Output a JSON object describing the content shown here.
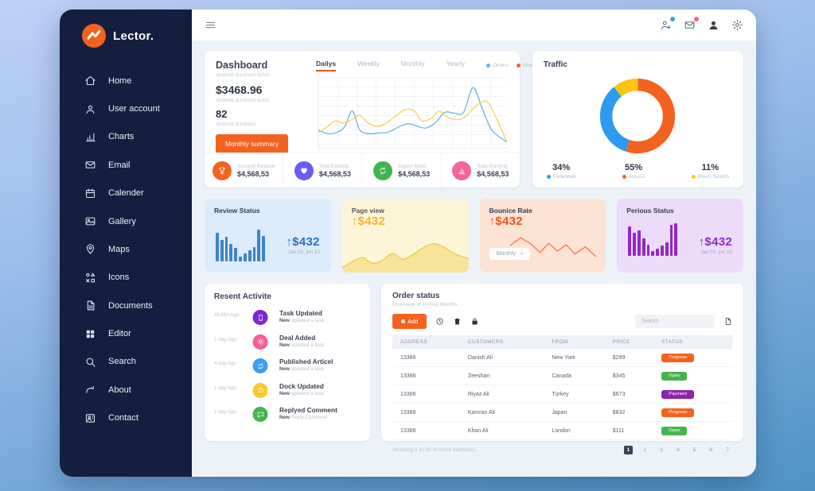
{
  "app": {
    "logo_text": "Lector.",
    "accent": "#f4621f",
    "sidebar_bg": "#141e3e"
  },
  "sidebar": {
    "items": [
      {
        "label": "Home",
        "icon": "home"
      },
      {
        "label": "User account",
        "icon": "user"
      },
      {
        "label": "Charts",
        "icon": "charts"
      },
      {
        "label": "Email",
        "icon": "email"
      },
      {
        "label": "Calender",
        "icon": "calendar"
      },
      {
        "label": "Gallery",
        "icon": "gallery"
      },
      {
        "label": "Maps",
        "icon": "maps"
      },
      {
        "label": "Icons",
        "icon": "icons"
      },
      {
        "label": "Documents",
        "icon": "documents"
      },
      {
        "label": "Editor",
        "icon": "editor"
      },
      {
        "label": "Search",
        "icon": "search"
      },
      {
        "label": "About",
        "icon": "about"
      },
      {
        "label": "Contact",
        "icon": "contact"
      }
    ]
  },
  "header": {
    "actions": [
      {
        "icon": "useradd",
        "badge": "#3d9df3",
        "color": "#5f6b7d"
      },
      {
        "icon": "email",
        "badge": "#f55f8f",
        "color": "#5f6b7d"
      },
      {
        "icon": "avatar",
        "color": "#3a3f45"
      },
      {
        "icon": "gear",
        "color": "#5f6b7d"
      }
    ]
  },
  "dashboard": {
    "title": "Dashboard",
    "subtitle": "dndbdd duishoul schsl.",
    "balance": "$3468.96",
    "balance_subtitle": "dndbdd duishoul schsl.",
    "count": "82",
    "count_subtitle": "dndbdd duishdui.",
    "button_label": "Monthly summary",
    "tabs": [
      {
        "label": "Dailys",
        "active": true
      },
      {
        "label": "Weekly"
      },
      {
        "label": "Monthly"
      },
      {
        "label": "Yearly"
      }
    ],
    "legend": [
      {
        "label": "Orders",
        "color": "#6cb6e4"
      },
      {
        "label": "Shops",
        "color": "#f4621f"
      }
    ],
    "stats": [
      {
        "label": "Account Balance",
        "value": "$4,568,53",
        "color": "#f4621f",
        "icon": "trophy"
      },
      {
        "label": "Total Earning",
        "value": "$4,568,53",
        "color": "#6a5cf5",
        "icon": "heart"
      },
      {
        "label": "Export Items",
        "value": "$4,568,53",
        "color": "#43b44c",
        "icon": "sync"
      },
      {
        "label": "Ratio Earning",
        "value": "$4,568,53",
        "color": "#f2679b",
        "icon": "chartbar"
      }
    ]
  },
  "traffic": {
    "title": "Traffic",
    "legend": [
      {
        "label": "Facebook",
        "pct_label": "34%",
        "color": "#2e9bf0"
      },
      {
        "label": "Access",
        "pct_label": "55%",
        "color": "#f4621f"
      },
      {
        "label": "Direct Search",
        "pct_label": "11%",
        "color": "#fdc513"
      }
    ]
  },
  "status_cards": {
    "review": {
      "title": "Review Status",
      "value": "↑$432",
      "period": "Jan 01, jun 10",
      "accent": "#2d6fc1",
      "bg": "#dcecfc"
    },
    "pageview": {
      "title": "Page view",
      "value": "↑$432",
      "accent": "#f0b429",
      "bg": "#fdf5d7"
    },
    "bounce": {
      "title": "Bounice Rate",
      "value": "↑$432",
      "dropdown": "Monthly",
      "accent": "#f0541e",
      "bg": "#fce3d3"
    },
    "perious": {
      "title": "Perious Status",
      "value": "↑$432",
      "period": "Jan 01, jun 10",
      "accent": "#9127c9",
      "bg": "#eddbfa"
    }
  },
  "activity": {
    "title": "Resent Activite",
    "items": [
      {
        "time": "45 Min Ago",
        "icon": "tablet",
        "color": "#8024d8",
        "title": "Task Updated",
        "bold": "New",
        "rest": " updated a task"
      },
      {
        "time": "1 day Ago",
        "icon": "gear",
        "color": "#f55f8f",
        "title": "Deal Added",
        "bold": "New",
        "rest": " updated a task"
      },
      {
        "time": "4 day Ago",
        "icon": "sync",
        "color": "#3d9df3",
        "title": "Published Articel",
        "bold": "New",
        "rest": " updated a task"
      },
      {
        "time": "1 day Ago",
        "icon": "thumb",
        "color": "#fdc72f",
        "title": "Dock Updated",
        "bold": "New",
        "rest": " updated a task"
      },
      {
        "time": "1 day Ago",
        "icon": "comment",
        "color": "#43b44c",
        "title": "Replyed Comment",
        "bold": "New",
        "rest": " Reply Comment"
      }
    ]
  },
  "orders": {
    "title": "Order status",
    "subtitle": "Overview of limited Months",
    "add_label": "Add",
    "search_placeholder": "Search",
    "columns": [
      "ADDRESS",
      "CUSTOMERS",
      "FROM",
      "PRICE",
      "STATUS"
    ],
    "rows": [
      {
        "address": "13386",
        "customer": "Danish Ali",
        "from": "New York",
        "price": "$299",
        "status": "Progress",
        "status_color": "#f4621f"
      },
      {
        "address": "13386",
        "customer": "Zeeshan",
        "from": "Canada",
        "price": "$345",
        "status": "Open",
        "status_color": "#43b44c"
      },
      {
        "address": "13386",
        "customer": "Riyaz Ali",
        "from": "Turkey",
        "price": "$673",
        "status": "Payment",
        "status_color": "#8e24aa"
      },
      {
        "address": "13386",
        "customer": "Kamran Ali",
        "from": "Japan",
        "price": "$832",
        "status": "Progress",
        "status_color": "#f4621f"
      },
      {
        "address": "13386",
        "customer": "Khan Ali",
        "from": "London",
        "price": "$111",
        "status": "Open",
        "status_color": "#43b44c"
      }
    ],
    "footer": "Showing 1 to 20 of more members",
    "pages": [
      {
        "n": "1",
        "active": true
      },
      {
        "n": "2"
      },
      {
        "n": "3"
      },
      {
        "n": "4"
      },
      {
        "n": "5"
      },
      {
        "n": "6"
      },
      {
        "n": "7"
      }
    ]
  },
  "chart_data": [
    {
      "id": "activity-line",
      "type": "line",
      "title": "Dashboard - Dailys",
      "ylim": [
        0,
        100
      ],
      "grid": true,
      "legend_position": "top-right",
      "series": [
        {
          "name": "Orders",
          "color": "#6cb6e4",
          "points": [
            [
              0,
              25
            ],
            [
              5,
              20
            ],
            [
              10,
              22
            ],
            [
              14,
              30
            ],
            [
              18,
              52
            ],
            [
              22,
              25
            ],
            [
              27,
              20
            ],
            [
              32,
              21
            ],
            [
              37,
              22
            ],
            [
              43,
              30
            ],
            [
              48,
              34
            ],
            [
              53,
              30
            ],
            [
              57,
              28
            ],
            [
              62,
              35
            ],
            [
              67,
              50
            ],
            [
              72,
              49
            ],
            [
              77,
              50
            ],
            [
              82,
              85
            ],
            [
              87,
              55
            ],
            [
              92,
              25
            ],
            [
              100,
              8
            ]
          ]
        },
        {
          "name": "Shops",
          "color": "#f5d353",
          "points": [
            [
              0,
              22
            ],
            [
              5,
              30
            ],
            [
              9,
              38
            ],
            [
              13,
              35
            ],
            [
              18,
              40
            ],
            [
              22,
              46
            ],
            [
              26,
              36
            ],
            [
              31,
              30
            ],
            [
              36,
              35
            ],
            [
              41,
              45
            ],
            [
              46,
              54
            ],
            [
              51,
              52
            ],
            [
              55,
              38
            ],
            [
              60,
              42
            ],
            [
              64,
              52
            ],
            [
              68,
              44
            ],
            [
              72,
              40
            ],
            [
              77,
              42
            ],
            [
              82,
              55
            ],
            [
              87,
              65
            ],
            [
              91,
              60
            ],
            [
              100,
              8
            ]
          ]
        }
      ]
    },
    {
      "id": "traffic-donut",
      "type": "pie",
      "title": "Traffic",
      "segments": [
        {
          "label": "Access",
          "value": 55,
          "color": "#f4621f"
        },
        {
          "label": "Facebook",
          "value": 34,
          "color": "#2e9bf0"
        },
        {
          "label": "Direct Search",
          "value": 11,
          "color": "#fdc513"
        }
      ]
    },
    {
      "id": "review-bars",
      "type": "bar",
      "title": "Review Status",
      "color": "#3d84c6",
      "values": [
        78,
        58,
        68,
        48,
        36,
        14,
        22,
        30,
        40,
        88,
        70
      ]
    },
    {
      "id": "pageview-area",
      "type": "area",
      "title": "Page view",
      "color": "#eec84e",
      "fillColor": "#f6dc85",
      "points": [
        [
          0,
          12
        ],
        [
          8,
          26
        ],
        [
          16,
          36
        ],
        [
          24,
          22
        ],
        [
          32,
          30
        ],
        [
          40,
          46
        ],
        [
          48,
          32
        ],
        [
          56,
          44
        ],
        [
          64,
          60
        ],
        [
          72,
          70
        ],
        [
          80,
          62
        ],
        [
          90,
          44
        ],
        [
          100,
          34
        ]
      ]
    },
    {
      "id": "bounce-line",
      "type": "line",
      "title": "Bounice Rate",
      "color": "#f2784b",
      "smooth": false,
      "points": [
        [
          0,
          50
        ],
        [
          12,
          72
        ],
        [
          24,
          54
        ],
        [
          34,
          30
        ],
        [
          44,
          56
        ],
        [
          54,
          34
        ],
        [
          64,
          52
        ],
        [
          74,
          26
        ],
        [
          86,
          46
        ],
        [
          98,
          18
        ]
      ]
    },
    {
      "id": "perious-bars",
      "type": "bar",
      "title": "Perious Status",
      "color": "#9127c9",
      "values": [
        80,
        62,
        70,
        48,
        30,
        14,
        20,
        28,
        38,
        85,
        90
      ]
    }
  ]
}
